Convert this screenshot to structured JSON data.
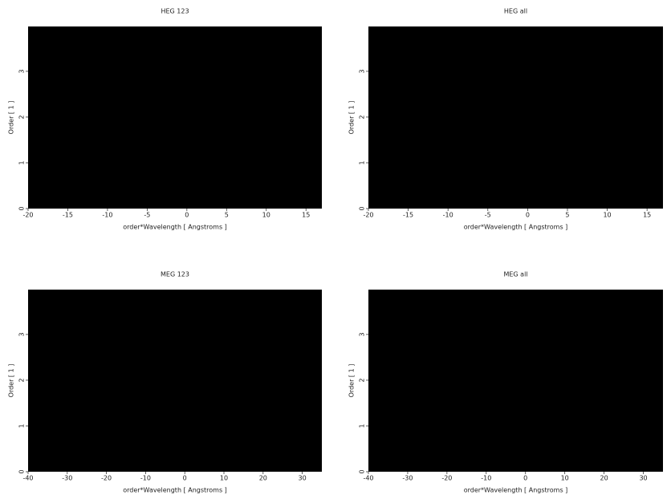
{
  "chart_data": [
    {
      "type": "image",
      "title": "HEG 123",
      "xlabel": "order*Wavelength [ Angstroms ]",
      "ylabel": "Order [ 1 ]",
      "xlim": [
        -20,
        17
      ],
      "ylim": [
        0,
        3.98
      ],
      "xticks": [
        -20,
        -15,
        -10,
        -5,
        0,
        5,
        10,
        15
      ],
      "yticks": [
        0,
        1,
        2,
        3
      ]
    },
    {
      "type": "image",
      "title": "HEG all",
      "xlabel": "order*Wavelength [ Angstroms ]",
      "ylabel": "Order [ 1 ]",
      "xlim": [
        -20,
        17
      ],
      "ylim": [
        0,
        3.98
      ],
      "xticks": [
        -20,
        -15,
        -10,
        -5,
        0,
        5,
        10,
        15
      ],
      "yticks": [
        0,
        1,
        2,
        3
      ]
    },
    {
      "type": "image",
      "title": "MEG 123",
      "xlabel": "order*Wavelength [ Angstroms ]",
      "ylabel": "Order [ 1 ]",
      "xlim": [
        -40,
        35
      ],
      "ylim": [
        0,
        3.98
      ],
      "xticks": [
        -40,
        -30,
        -20,
        -10,
        0,
        10,
        20,
        30
      ],
      "yticks": [
        0,
        1,
        2,
        3
      ]
    },
    {
      "type": "image",
      "title": "MEG all",
      "xlabel": "order*Wavelength [ Angstroms ]",
      "ylabel": "Order [ 1 ]",
      "xlim": [
        -40,
        35
      ],
      "ylim": [
        0,
        3.98
      ],
      "xticks": [
        -40,
        -30,
        -20,
        -10,
        0,
        10,
        20,
        30
      ],
      "yticks": [
        0,
        1,
        2,
        3
      ]
    }
  ]
}
